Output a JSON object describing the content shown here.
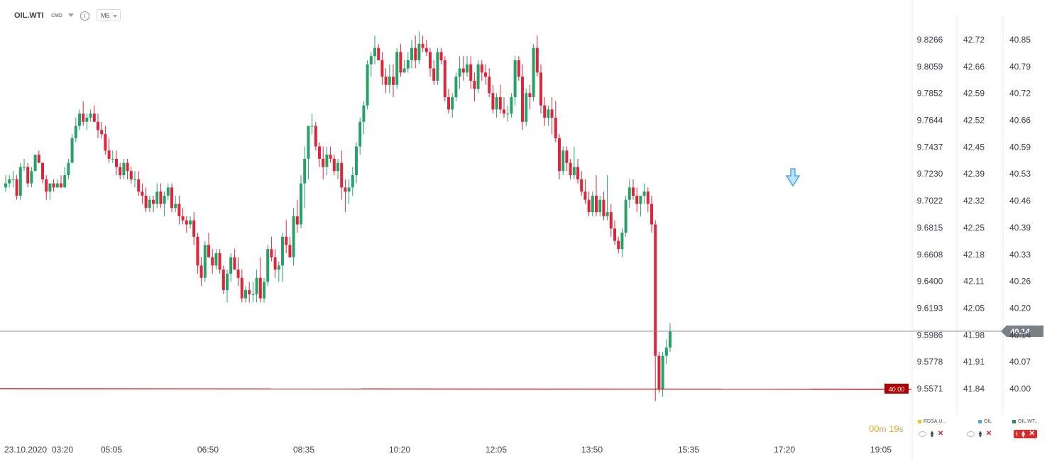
{
  "header": {
    "symbol": "OIL.WTI",
    "type_label": "CMD",
    "info_icon": "info-icon",
    "timeframe": "M5"
  },
  "axes": {
    "col1": [
      "9.8266",
      "9.8059",
      "9.7852",
      "9.7644",
      "9.7437",
      "9.7230",
      "9.7022",
      "9.6815",
      "9.6608",
      "9.6400",
      "9.6193",
      "9.5986",
      "9.5778",
      "9.5571"
    ],
    "col2": [
      "42.72",
      "42.66",
      "42.59",
      "42.52",
      "42.45",
      "42.39",
      "42.32",
      "42.25",
      "42.18",
      "42.11",
      "42.05",
      "41.98",
      "41.91",
      "41.84"
    ],
    "col3": [
      "40.85",
      "40.79",
      "40.72",
      "40.66",
      "40.59",
      "40.53",
      "40.46",
      "40.39",
      "40.33",
      "40.26",
      "40.20",
      "40.14",
      "40.07",
      "40.00"
    ],
    "x_ticks": [
      "23.10.2020",
      "03:20",
      "05:05",
      "06:50",
      "08:35",
      "10:20",
      "12:05",
      "13:50",
      "15:35",
      "17:20",
      "19:05"
    ]
  },
  "price_tag": "40.14",
  "level_tag": "40.00",
  "countdown": {
    "m_value": "00",
    "m_unit": "m",
    "s_value": "19",
    "s_unit": "s"
  },
  "legend": [
    {
      "label": "RDSA.U..",
      "color": "#f5c518"
    },
    {
      "label": "OIL",
      "color": "#4aa8e8"
    },
    {
      "label": "OIL.WT..",
      "color": "#2e8b57"
    }
  ],
  "colors": {
    "up": "#26a269",
    "down": "#e0253a",
    "grid": "#e6e8ec",
    "price_line": "#8a8f98",
    "level_line": "#b00000",
    "marker": "#4aa8e8"
  },
  "chart_data": {
    "type": "candlestick",
    "symbol": "OIL.WTI",
    "timeframe": "M5",
    "y_range": [
      39.96,
      40.88
    ],
    "start_time": "02:20",
    "interval_min": 5,
    "current_price": 40.14,
    "level_line": 40.0,
    "marker": {
      "time": "17:10",
      "type": "down-arrow"
    },
    "ohlc": [
      [
        40.49,
        40.52,
        40.48,
        40.5
      ],
      [
        40.5,
        40.52,
        40.49,
        40.51
      ],
      [
        40.51,
        40.53,
        40.49,
        40.51
      ],
      [
        40.51,
        40.52,
        40.46,
        40.47
      ],
      [
        40.47,
        40.55,
        40.46,
        40.54
      ],
      [
        40.54,
        40.56,
        40.53,
        40.54
      ],
      [
        40.54,
        40.55,
        40.49,
        40.5
      ],
      [
        40.5,
        40.54,
        40.49,
        40.53
      ],
      [
        40.53,
        40.57,
        40.53,
        40.57
      ],
      [
        40.57,
        40.58,
        40.55,
        40.55
      ],
      [
        40.55,
        40.55,
        40.5,
        40.51
      ],
      [
        40.51,
        40.52,
        40.46,
        40.48
      ],
      [
        40.48,
        40.5,
        40.46,
        40.5
      ],
      [
        40.5,
        40.51,
        40.48,
        40.49
      ],
      [
        40.49,
        40.51,
        40.49,
        40.5
      ],
      [
        40.5,
        40.52,
        40.49,
        40.49
      ],
      [
        40.49,
        40.54,
        40.49,
        40.52
      ],
      [
        40.52,
        40.56,
        40.51,
        40.55
      ],
      [
        40.55,
        40.62,
        40.55,
        40.61
      ],
      [
        40.61,
        40.66,
        40.6,
        40.64
      ],
      [
        40.64,
        40.68,
        40.63,
        40.67
      ],
      [
        40.67,
        40.7,
        40.64,
        40.65
      ],
      [
        40.65,
        40.67,
        40.63,
        40.66
      ],
      [
        40.66,
        40.68,
        40.65,
        40.67
      ],
      [
        40.67,
        40.69,
        40.65,
        40.65
      ],
      [
        40.65,
        40.67,
        40.61,
        40.63
      ],
      [
        40.63,
        40.65,
        40.61,
        40.62
      ],
      [
        40.62,
        40.64,
        40.57,
        40.58
      ],
      [
        40.58,
        40.61,
        40.55,
        40.56
      ],
      [
        40.56,
        40.58,
        40.55,
        40.56
      ],
      [
        40.56,
        40.58,
        40.52,
        40.54
      ],
      [
        40.54,
        40.55,
        40.51,
        40.52
      ],
      [
        40.52,
        40.56,
        40.51,
        40.55
      ],
      [
        40.55,
        40.56,
        40.51,
        40.53
      ],
      [
        40.53,
        40.54,
        40.5,
        40.51
      ],
      [
        40.51,
        40.53,
        40.49,
        40.51
      ],
      [
        40.51,
        40.53,
        40.47,
        40.48
      ],
      [
        40.48,
        40.5,
        40.45,
        40.47
      ],
      [
        40.47,
        40.49,
        40.43,
        40.44
      ],
      [
        40.44,
        40.47,
        40.43,
        40.46
      ],
      [
        40.46,
        40.47,
        40.43,
        40.45
      ],
      [
        40.45,
        40.5,
        40.44,
        40.48
      ],
      [
        40.48,
        40.5,
        40.44,
        40.45
      ],
      [
        40.45,
        40.48,
        40.42,
        40.47
      ],
      [
        40.47,
        40.5,
        40.46,
        40.49
      ],
      [
        40.49,
        40.5,
        40.43,
        40.44
      ],
      [
        40.44,
        40.47,
        40.43,
        40.45
      ],
      [
        40.45,
        40.47,
        40.4,
        40.42
      ],
      [
        40.42,
        40.44,
        40.4,
        40.41
      ],
      [
        40.41,
        40.42,
        40.38,
        40.4
      ],
      [
        40.4,
        40.42,
        40.39,
        40.41
      ],
      [
        40.41,
        40.43,
        40.35,
        40.37
      ],
      [
        40.37,
        40.38,
        40.28,
        40.3
      ],
      [
        40.3,
        40.32,
        40.25,
        40.27
      ],
      [
        40.27,
        40.36,
        40.26,
        40.35
      ],
      [
        40.35,
        40.38,
        40.32,
        40.32
      ],
      [
        40.32,
        40.34,
        40.28,
        40.3
      ],
      [
        40.3,
        40.34,
        40.29,
        40.33
      ],
      [
        40.33,
        40.34,
        40.28,
        40.29
      ],
      [
        40.29,
        40.3,
        40.23,
        40.24
      ],
      [
        40.24,
        40.29,
        40.21,
        40.28
      ],
      [
        40.28,
        40.33,
        40.26,
        40.32
      ],
      [
        40.32,
        40.34,
        40.29,
        40.29
      ],
      [
        40.29,
        40.32,
        40.25,
        40.27
      ],
      [
        40.27,
        40.29,
        40.21,
        40.22
      ],
      [
        40.22,
        40.25,
        40.21,
        40.24
      ],
      [
        40.24,
        40.26,
        40.21,
        40.23
      ],
      [
        40.23,
        40.26,
        40.21,
        40.23
      ],
      [
        40.23,
        40.29,
        40.21,
        40.27
      ],
      [
        40.27,
        40.32,
        40.21,
        40.22
      ],
      [
        40.22,
        40.27,
        40.21,
        40.26
      ],
      [
        40.26,
        40.35,
        40.25,
        40.34
      ],
      [
        40.34,
        40.37,
        40.31,
        40.32
      ],
      [
        40.32,
        40.34,
        40.27,
        40.29
      ],
      [
        40.29,
        40.31,
        40.26,
        40.3
      ],
      [
        40.3,
        40.38,
        40.26,
        40.37
      ],
      [
        40.37,
        40.41,
        40.33,
        40.35
      ],
      [
        40.35,
        40.37,
        40.32,
        40.32
      ],
      [
        40.32,
        40.44,
        40.3,
        40.42
      ],
      [
        40.42,
        40.46,
        40.38,
        40.4
      ],
      [
        40.4,
        40.52,
        40.39,
        40.5
      ],
      [
        40.5,
        40.59,
        40.44,
        40.56
      ],
      [
        40.56,
        40.64,
        40.51,
        40.64
      ],
      [
        40.64,
        40.67,
        40.62,
        40.64
      ],
      [
        40.64,
        40.65,
        40.58,
        40.59
      ],
      [
        40.59,
        40.6,
        40.54,
        40.56
      ],
      [
        40.56,
        40.59,
        40.51,
        40.54
      ],
      [
        40.54,
        40.59,
        40.52,
        40.57
      ],
      [
        40.57,
        40.59,
        40.55,
        40.56
      ],
      [
        40.56,
        40.57,
        40.52,
        40.53
      ],
      [
        40.53,
        40.56,
        40.51,
        40.55
      ],
      [
        40.55,
        40.58,
        40.46,
        40.49
      ],
      [
        40.49,
        40.51,
        40.43,
        40.48
      ],
      [
        40.48,
        40.51,
        40.45,
        40.49
      ],
      [
        40.49,
        40.54,
        40.47,
        40.52
      ],
      [
        40.52,
        40.6,
        40.5,
        40.59
      ],
      [
        40.59,
        40.66,
        40.57,
        40.65
      ],
      [
        40.65,
        40.7,
        40.62,
        40.69
      ],
      [
        40.69,
        40.8,
        40.68,
        40.79
      ],
      [
        40.79,
        40.82,
        40.76,
        40.81
      ],
      [
        40.81,
        40.86,
        40.79,
        40.83
      ],
      [
        40.83,
        40.84,
        40.8,
        40.8
      ],
      [
        40.8,
        40.82,
        40.74,
        40.76
      ],
      [
        40.76,
        40.78,
        40.72,
        40.74
      ],
      [
        40.74,
        40.79,
        40.72,
        40.76
      ],
      [
        40.76,
        40.79,
        40.71,
        40.74
      ],
      [
        40.74,
        40.83,
        40.73,
        40.82
      ],
      [
        40.82,
        40.84,
        40.76,
        40.77
      ],
      [
        40.77,
        40.8,
        40.77,
        40.78
      ],
      [
        40.78,
        40.82,
        40.77,
        40.8
      ],
      [
        40.8,
        40.85,
        40.78,
        40.83
      ],
      [
        40.83,
        40.86,
        40.78,
        40.8
      ],
      [
        40.8,
        40.87,
        40.79,
        40.84
      ],
      [
        40.84,
        40.86,
        40.82,
        40.83
      ],
      [
        40.83,
        40.85,
        40.81,
        40.82
      ],
      [
        40.82,
        40.83,
        40.76,
        40.78
      ],
      [
        40.78,
        40.8,
        40.74,
        40.75
      ],
      [
        40.75,
        40.83,
        40.74,
        40.82
      ],
      [
        40.82,
        40.83,
        40.79,
        40.8
      ],
      [
        40.8,
        40.81,
        40.7,
        40.71
      ],
      [
        40.71,
        40.73,
        40.67,
        40.68
      ],
      [
        40.68,
        40.72,
        40.66,
        40.71
      ],
      [
        40.71,
        40.77,
        40.7,
        40.76
      ],
      [
        40.76,
        40.81,
        40.73,
        40.78
      ],
      [
        40.78,
        40.81,
        40.75,
        40.77
      ],
      [
        40.77,
        40.81,
        40.76,
        40.79
      ],
      [
        40.79,
        40.81,
        40.73,
        40.75
      ],
      [
        40.75,
        40.77,
        40.7,
        40.73
      ],
      [
        40.73,
        40.8,
        40.72,
        40.79
      ],
      [
        40.79,
        40.8,
        40.75,
        40.77
      ],
      [
        40.77,
        40.79,
        40.74,
        40.76
      ],
      [
        40.76,
        40.78,
        40.71,
        40.72
      ],
      [
        40.72,
        40.74,
        40.67,
        40.68
      ],
      [
        40.68,
        40.72,
        40.66,
        40.71
      ],
      [
        40.71,
        40.74,
        40.67,
        40.68
      ],
      [
        40.68,
        40.71,
        40.66,
        40.67
      ],
      [
        40.67,
        40.69,
        40.65,
        40.67
      ],
      [
        40.67,
        40.72,
        40.66,
        40.71
      ],
      [
        40.71,
        40.81,
        40.69,
        40.8
      ],
      [
        40.8,
        40.81,
        40.75,
        40.76
      ],
      [
        40.76,
        40.79,
        40.63,
        40.65
      ],
      [
        40.65,
        40.73,
        40.64,
        40.72
      ],
      [
        40.72,
        40.74,
        40.68,
        40.71
      ],
      [
        40.71,
        40.84,
        40.7,
        40.83
      ],
      [
        40.83,
        40.86,
        40.76,
        40.77
      ],
      [
        40.77,
        40.79,
        40.67,
        40.69
      ],
      [
        40.69,
        40.71,
        40.64,
        40.66
      ],
      [
        40.66,
        40.69,
        40.64,
        40.68
      ],
      [
        40.68,
        40.71,
        40.62,
        40.66
      ],
      [
        40.66,
        40.7,
        40.6,
        40.61
      ],
      [
        40.61,
        40.62,
        40.51,
        40.53
      ],
      [
        40.53,
        40.59,
        40.52,
        40.58
      ],
      [
        40.58,
        40.59,
        40.53,
        40.55
      ],
      [
        40.55,
        40.56,
        40.51,
        40.52
      ],
      [
        40.52,
        40.59,
        40.51,
        40.54
      ],
      [
        40.54,
        40.56,
        40.5,
        40.51
      ],
      [
        40.51,
        40.53,
        40.47,
        40.48
      ],
      [
        40.48,
        40.51,
        40.45,
        40.46
      ],
      [
        40.46,
        40.48,
        40.42,
        40.43
      ],
      [
        40.43,
        40.48,
        40.42,
        40.47
      ],
      [
        40.47,
        40.52,
        40.42,
        40.43
      ],
      [
        40.43,
        40.47,
        40.42,
        40.46
      ],
      [
        40.46,
        40.48,
        40.41,
        40.42
      ],
      [
        40.42,
        40.52,
        40.41,
        40.43
      ],
      [
        40.43,
        40.45,
        40.37,
        40.39
      ],
      [
        40.39,
        40.41,
        40.35,
        40.36
      ],
      [
        40.36,
        40.37,
        40.33,
        40.34
      ],
      [
        40.34,
        40.39,
        40.32,
        40.38
      ],
      [
        40.38,
        40.47,
        40.37,
        40.46
      ],
      [
        40.46,
        40.51,
        40.44,
        40.49
      ],
      [
        40.49,
        40.51,
        40.46,
        40.47
      ],
      [
        40.47,
        40.49,
        40.43,
        40.45
      ],
      [
        40.45,
        40.47,
        40.42,
        40.47
      ],
      [
        40.47,
        40.5,
        40.45,
        40.48
      ],
      [
        40.48,
        40.49,
        40.43,
        40.45
      ],
      [
        40.45,
        40.47,
        40.38,
        40.4
      ],
      [
        40.4,
        40.41,
        39.97,
        40.08
      ],
      [
        40.08,
        40.09,
        39.99,
        40.0
      ],
      [
        40.0,
        40.09,
        39.98,
        40.08
      ],
      [
        40.08,
        40.12,
        40.06,
        40.1
      ],
      [
        40.1,
        40.16,
        40.09,
        40.14
      ]
    ],
    "x_ticks": [
      "23.10.2020",
      "03:20",
      "05:05",
      "06:50",
      "08:35",
      "10:20",
      "12:05",
      "13:50",
      "15:35",
      "17:20",
      "19:05"
    ],
    "y_ticks": [
      "40.85",
      "40.79",
      "40.72",
      "40.66",
      "40.59",
      "40.53",
      "40.46",
      "40.39",
      "40.33",
      "40.26",
      "40.20",
      "40.14",
      "40.07",
      "40.00"
    ],
    "y_ticks_secondary": [
      "42.72",
      "42.66",
      "42.59",
      "42.52",
      "42.45",
      "42.39",
      "42.32",
      "42.25",
      "42.18",
      "42.11",
      "42.05",
      "41.98",
      "41.91",
      "41.84"
    ],
    "y_ticks_tertiary": [
      "9.8266",
      "9.8059",
      "9.7852",
      "9.7644",
      "9.7437",
      "9.7230",
      "9.7022",
      "9.6815",
      "9.6608",
      "9.6400",
      "9.6193",
      "9.5986",
      "9.5778",
      "9.5571"
    ],
    "legend": [
      "RDSA.U..",
      "OIL",
      "OIL.WT.."
    ]
  }
}
